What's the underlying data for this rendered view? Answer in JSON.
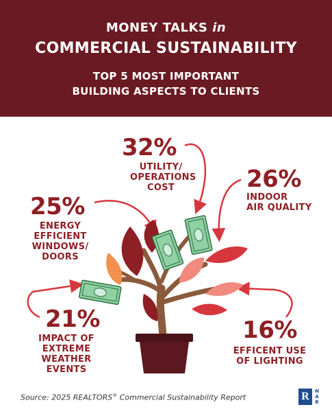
{
  "header": {
    "line1_a": "MONEY TALKS",
    "line1_b": "in",
    "line2": "COMMERCIAL SUSTAINABILITY",
    "line3a": "TOP 5 MOST IMPORTANT",
    "line3b": "BUILDING ASPECTS TO CLIENTS"
  },
  "colors": {
    "header_bg": "#6a1a22",
    "accent_red": "#8e1f24",
    "leaf_dark": "#8e1f24",
    "leaf_red": "#d6373d",
    "leaf_pink": "#f08a7e",
    "leaf_orange": "#f3904f",
    "trunk": "#8b5a3c",
    "pot": "#5c1820",
    "money": "#8fd1a2"
  },
  "chart_data": {
    "type": "infographic",
    "title": "TOP 5 MOST IMPORTANT BUILDING ASPECTS TO CLIENTS",
    "categories": [
      "UTILITY/ OPERATIONS COST",
      "INDOOR AIR QUALITY",
      "ENERGY EFFICIENT WINDOWS/ DOORS",
      "IMPACT OF EXTREME WEATHER EVENTS",
      "EFFICENT USE OF LIGHTING"
    ],
    "values": [
      32,
      26,
      25,
      21,
      16
    ],
    "items": [
      {
        "value_label": "32%",
        "lines": [
          "UTILITY/",
          "OPERATIONS",
          "COST"
        ]
      },
      {
        "value_label": "26%",
        "lines": [
          "INDOOR",
          "AIR QUALITY"
        ]
      },
      {
        "value_label": "25%",
        "lines": [
          "ENERGY",
          "EFFICIENT",
          "WINDOWS/",
          "DOORS"
        ]
      },
      {
        "value_label": "21%",
        "lines": [
          "IMPACT OF",
          "EXTREME",
          "WEATHER",
          "EVENTS"
        ]
      },
      {
        "value_label": "16%",
        "lines": [
          "EFFICENT USE",
          "OF LIGHTING"
        ]
      }
    ]
  },
  "footer": {
    "source_a": "Source: 2025 REALTORS",
    "source_reg": "®",
    "source_b": " Commercial Sustainability Report",
    "logo_letter": "R",
    "logo_side": "N A R"
  }
}
